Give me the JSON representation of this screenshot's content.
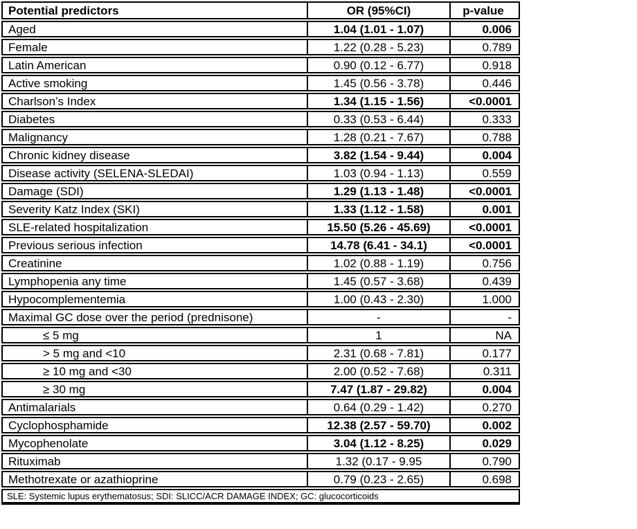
{
  "table": {
    "columns": {
      "predictors": "Potential predictors",
      "or": "OR (95%CI)",
      "pvalue": "p-value"
    },
    "rows": [
      {
        "label": "Aged",
        "or": "1.04 (1.01 - 1.07)",
        "p": "0.006",
        "bold": true,
        "indent": false
      },
      {
        "label": "Female",
        "or": "1.22 (0.28 - 5.23)",
        "p": "0.789",
        "bold": false,
        "indent": false
      },
      {
        "label": "Latin American",
        "or": "0.90 (0.12 - 6.77)",
        "p": "0.918",
        "bold": false,
        "indent": false
      },
      {
        "label": "Active smoking",
        "or": "1.45 (0.56 - 3.78)",
        "p": "0.446",
        "bold": false,
        "indent": false
      },
      {
        "label": "Charlson’s Index",
        "or": "1.34 (1.15 - 1.56)",
        "p": "<0.0001",
        "bold": true,
        "indent": false
      },
      {
        "label": "Diabetes",
        "or": "0.33 (0.53 - 6.44)",
        "p": "0.333",
        "bold": false,
        "indent": false
      },
      {
        "label": "Malignancy",
        "or": "1.28 (0.21 - 7.67)",
        "p": "0.788",
        "bold": false,
        "indent": false
      },
      {
        "label": "Chronic kidney disease",
        "or": "3.82 (1.54 - 9.44)",
        "p": "0.004",
        "bold": true,
        "indent": false
      },
      {
        "label": "Disease activity (SELENA-SLEDAI)",
        "or": "1.03 (0.94 - 1.13)",
        "p": "0.559",
        "bold": false,
        "indent": false
      },
      {
        "label": "Damage (SDI)",
        "or": "1.29 (1.13 - 1.48)",
        "p": "<0.0001",
        "bold": true,
        "indent": false
      },
      {
        "label": "Severity Katz Index (SKI)",
        "or": "1.33 (1.12 - 1.58)",
        "p": "0.001",
        "bold": true,
        "indent": false
      },
      {
        "label": "SLE-related hospitalization",
        "or": "15.50 (5.26 - 45.69)",
        "p": "<0.0001",
        "bold": true,
        "indent": false
      },
      {
        "label": "Previous serious infection",
        "or": "14.78 (6.41 - 34.1)",
        "p": "<0.0001",
        "bold": true,
        "indent": false
      },
      {
        "label": "Creatinine",
        "or": "1.02 (0.88 - 1.19)",
        "p": "0.756",
        "bold": false,
        "indent": false
      },
      {
        "label": "Lymphopenia any time",
        "or": "1.45 (0.57 - 3.68)",
        "p": "0.439",
        "bold": false,
        "indent": false
      },
      {
        "label": "Hypocomplementemia",
        "or": "1.00 (0.43 - 2.30)",
        "p": "1.000",
        "bold": false,
        "indent": false
      },
      {
        "label": "Maximal GC dose over the period (prednisone)",
        "or": "-",
        "p": "-",
        "bold": false,
        "indent": false
      },
      {
        "label": "≤ 5 mg",
        "or": "1",
        "p": "NA",
        "bold": false,
        "indent": true
      },
      {
        "label": "> 5 mg and <10",
        "or": "2.31 (0.68 - 7.81)",
        "p": "0.177",
        "bold": false,
        "indent": true
      },
      {
        "label": "≥ 10 mg and <30",
        "or": "2.00 (0.52 - 7.68)",
        "p": "0.311",
        "bold": false,
        "indent": true
      },
      {
        "label": "≥ 30 mg",
        "or": "7.47 (1.87 - 29.82)",
        "p": "0.004",
        "bold": true,
        "indent": true
      },
      {
        "label": "Antimalarials",
        "or": "0.64 (0.29 - 1.42)",
        "p": "0.270",
        "bold": false,
        "indent": false
      },
      {
        "label": "Cyclophosphamide",
        "or": "12.38 (2.57 - 59.70)",
        "p": "0.002",
        "bold": true,
        "indent": false
      },
      {
        "label": "Mycophenolate",
        "or": "3.04 (1.12 - 8.25)",
        "p": "0.029",
        "bold": true,
        "indent": false
      },
      {
        "label": "Rituximab",
        "or": "1.32 (0.17 - 9.95",
        "p": "0.790",
        "bold": false,
        "indent": false
      },
      {
        "label": "Methotrexate or azathioprine",
        "or": "0.79 (0.23 - 2.65)",
        "p": "0.698",
        "bold": false,
        "indent": false
      }
    ],
    "footnote": "SLE: Systemic lupus erythematosus; SDI: SLICC/ACR DAMAGE INDEX; GC: glucocorticoids"
  },
  "colors": {
    "text": "#000000",
    "border": "#000000",
    "background": "#ffffff"
  }
}
